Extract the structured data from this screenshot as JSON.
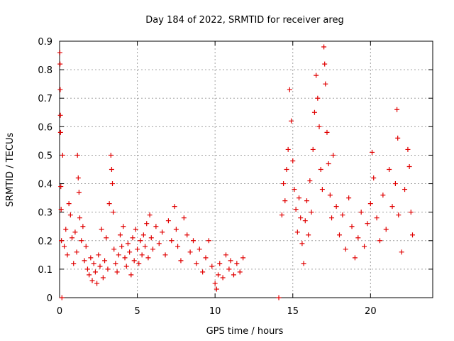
{
  "chart_data": {
    "type": "scatter",
    "title": "Day 184 of 2022, SRMTID for receiver areg",
    "xlabel": "GPS time / hours",
    "ylabel": "SRMTID / TECUs",
    "xlim": [
      0,
      24
    ],
    "ylim": [
      0,
      0.9
    ],
    "xticks": [
      0,
      5,
      10,
      15,
      20
    ],
    "xtick_labels": [
      "0",
      "5",
      "10",
      "15",
      "20"
    ],
    "yticks": [
      0,
      0.1,
      0.2,
      0.3,
      0.4,
      0.5,
      0.6,
      0.7,
      0.8,
      0.9
    ],
    "ytick_labels": [
      "0",
      "0.1",
      "0.2",
      "0.3",
      "0.4",
      "0.5",
      "0.6",
      "0.7",
      "0.8",
      "0.9"
    ],
    "grid": true,
    "marker": "+",
    "color": "#e00000",
    "series": [
      {
        "name": "SRMTID",
        "points": [
          [
            0.02,
            0.86
          ],
          [
            0.03,
            0.82
          ],
          [
            0.04,
            0.73
          ],
          [
            0.05,
            0.64
          ],
          [
            0.06,
            0.58
          ],
          [
            0.08,
            0.39
          ],
          [
            0.1,
            0.31
          ],
          [
            0.12,
            0.2
          ],
          [
            0.15,
            0.0
          ],
          [
            0.2,
            0.5
          ],
          [
            0.3,
            0.18
          ],
          [
            0.4,
            0.24
          ],
          [
            0.5,
            0.15
          ],
          [
            0.6,
            0.33
          ],
          [
            0.7,
            0.29
          ],
          [
            0.8,
            0.21
          ],
          [
            0.9,
            0.12
          ],
          [
            1.0,
            0.23
          ],
          [
            1.1,
            0.16
          ],
          [
            1.15,
            0.5
          ],
          [
            1.2,
            0.42
          ],
          [
            1.25,
            0.37
          ],
          [
            1.3,
            0.28
          ],
          [
            1.4,
            0.2
          ],
          [
            1.5,
            0.25
          ],
          [
            1.6,
            0.13
          ],
          [
            1.7,
            0.18
          ],
          [
            1.8,
            0.1
          ],
          [
            1.9,
            0.08
          ],
          [
            2.0,
            0.14
          ],
          [
            2.1,
            0.06
          ],
          [
            2.2,
            0.12
          ],
          [
            2.3,
            0.09
          ],
          [
            2.4,
            0.05
          ],
          [
            2.5,
            0.15
          ],
          [
            2.6,
            0.11
          ],
          [
            2.7,
            0.24
          ],
          [
            2.8,
            0.07
          ],
          [
            2.9,
            0.13
          ],
          [
            3.0,
            0.21
          ],
          [
            3.1,
            0.1
          ],
          [
            3.2,
            0.33
          ],
          [
            3.3,
            0.5
          ],
          [
            3.35,
            0.45
          ],
          [
            3.4,
            0.4
          ],
          [
            3.45,
            0.3
          ],
          [
            3.5,
            0.17
          ],
          [
            3.6,
            0.12
          ],
          [
            3.7,
            0.09
          ],
          [
            3.8,
            0.15
          ],
          [
            3.9,
            0.22
          ],
          [
            4.0,
            0.18
          ],
          [
            4.1,
            0.25
          ],
          [
            4.2,
            0.14
          ],
          [
            4.3,
            0.11
          ],
          [
            4.4,
            0.19
          ],
          [
            4.5,
            0.16
          ],
          [
            4.6,
            0.08
          ],
          [
            4.7,
            0.21
          ],
          [
            4.8,
            0.13
          ],
          [
            4.9,
            0.24
          ],
          [
            5.0,
            0.17
          ],
          [
            5.1,
            0.12
          ],
          [
            5.2,
            0.2
          ],
          [
            5.3,
            0.15
          ],
          [
            5.4,
            0.22
          ],
          [
            5.5,
            0.18
          ],
          [
            5.6,
            0.26
          ],
          [
            5.7,
            0.14
          ],
          [
            5.8,
            0.29
          ],
          [
            5.9,
            0.21
          ],
          [
            6.0,
            0.17
          ],
          [
            6.2,
            0.25
          ],
          [
            6.4,
            0.19
          ],
          [
            6.6,
            0.23
          ],
          [
            6.8,
            0.15
          ],
          [
            7.0,
            0.27
          ],
          [
            7.2,
            0.2
          ],
          [
            7.4,
            0.32
          ],
          [
            7.5,
            0.24
          ],
          [
            7.6,
            0.18
          ],
          [
            7.8,
            0.13
          ],
          [
            8.0,
            0.28
          ],
          [
            8.2,
            0.22
          ],
          [
            8.4,
            0.16
          ],
          [
            8.6,
            0.2
          ],
          [
            8.8,
            0.12
          ],
          [
            9.0,
            0.17
          ],
          [
            9.2,
            0.09
          ],
          [
            9.4,
            0.14
          ],
          [
            9.6,
            0.2
          ],
          [
            9.8,
            0.11
          ],
          [
            10.0,
            0.05
          ],
          [
            10.1,
            0.03
          ],
          [
            10.2,
            0.08
          ],
          [
            10.3,
            0.12
          ],
          [
            10.5,
            0.07
          ],
          [
            10.7,
            0.15
          ],
          [
            10.9,
            0.1
          ],
          [
            11.0,
            0.13
          ],
          [
            11.2,
            0.08
          ],
          [
            11.4,
            0.12
          ],
          [
            11.6,
            0.09
          ],
          [
            11.8,
            0.14
          ],
          [
            14.1,
            0.0
          ],
          [
            14.3,
            0.29
          ],
          [
            14.4,
            0.4
          ],
          [
            14.5,
            0.34
          ],
          [
            14.6,
            0.45
          ],
          [
            14.7,
            0.52
          ],
          [
            14.8,
            0.73
          ],
          [
            14.9,
            0.62
          ],
          [
            15.0,
            0.48
          ],
          [
            15.1,
            0.38
          ],
          [
            15.2,
            0.31
          ],
          [
            15.3,
            0.23
          ],
          [
            15.4,
            0.35
          ],
          [
            15.5,
            0.28
          ],
          [
            15.6,
            0.19
          ],
          [
            15.7,
            0.12
          ],
          [
            15.8,
            0.27
          ],
          [
            15.9,
            0.34
          ],
          [
            16.0,
            0.22
          ],
          [
            16.1,
            0.41
          ],
          [
            16.2,
            0.3
          ],
          [
            16.3,
            0.52
          ],
          [
            16.4,
            0.65
          ],
          [
            16.5,
            0.78
          ],
          [
            16.6,
            0.7
          ],
          [
            16.7,
            0.6
          ],
          [
            16.8,
            0.45
          ],
          [
            16.9,
            0.38
          ],
          [
            17.0,
            0.88
          ],
          [
            17.05,
            0.82
          ],
          [
            17.1,
            0.75
          ],
          [
            17.2,
            0.58
          ],
          [
            17.3,
            0.47
          ],
          [
            17.4,
            0.36
          ],
          [
            17.5,
            0.28
          ],
          [
            17.6,
            0.5
          ],
          [
            17.8,
            0.32
          ],
          [
            18.0,
            0.22
          ],
          [
            18.2,
            0.29
          ],
          [
            18.4,
            0.17
          ],
          [
            18.6,
            0.35
          ],
          [
            18.8,
            0.25
          ],
          [
            19.0,
            0.14
          ],
          [
            19.2,
            0.21
          ],
          [
            19.4,
            0.3
          ],
          [
            19.6,
            0.18
          ],
          [
            19.8,
            0.26
          ],
          [
            20.0,
            0.33
          ],
          [
            20.1,
            0.51
          ],
          [
            20.2,
            0.42
          ],
          [
            20.4,
            0.28
          ],
          [
            20.6,
            0.2
          ],
          [
            20.8,
            0.36
          ],
          [
            21.0,
            0.24
          ],
          [
            21.2,
            0.45
          ],
          [
            21.4,
            0.32
          ],
          [
            21.6,
            0.4
          ],
          [
            21.7,
            0.66
          ],
          [
            21.75,
            0.56
          ],
          [
            21.8,
            0.29
          ],
          [
            22.0,
            0.16
          ],
          [
            22.2,
            0.38
          ],
          [
            22.4,
            0.52
          ],
          [
            22.5,
            0.46
          ],
          [
            22.6,
            0.3
          ],
          [
            22.7,
            0.22
          ]
        ]
      }
    ]
  }
}
